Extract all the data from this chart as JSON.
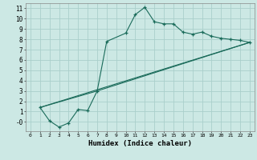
{
  "xlabel": "Humidex (Indice chaleur)",
  "bg_color": "#cce8e4",
  "grid_color": "#aacfcb",
  "line_color": "#1a6b5a",
  "xlim": [
    -0.5,
    23.5
  ],
  "ylim": [
    -0.9,
    11.5
  ],
  "xticks": [
    0,
    1,
    2,
    3,
    4,
    5,
    6,
    7,
    8,
    9,
    10,
    11,
    12,
    13,
    14,
    15,
    16,
    17,
    18,
    19,
    20,
    21,
    22,
    23
  ],
  "yticks": [
    0,
    1,
    2,
    3,
    4,
    5,
    6,
    7,
    8,
    9,
    10,
    11
  ],
  "ytick_labels": [
    "-0",
    "1",
    "2",
    "3",
    "4",
    "5",
    "6",
    "7",
    "8",
    "9",
    "10",
    "11"
  ],
  "line1_x": [
    1,
    2,
    3,
    4,
    5,
    6,
    7,
    8,
    10,
    11,
    12,
    13,
    14,
    15,
    16,
    17,
    18,
    19,
    20,
    21,
    22,
    23
  ],
  "line1_y": [
    1.4,
    0.1,
    -0.5,
    -0.1,
    1.2,
    1.1,
    3.0,
    7.8,
    8.6,
    10.4,
    11.1,
    9.7,
    9.5,
    9.5,
    8.7,
    8.5,
    8.7,
    8.3,
    8.1,
    8.0,
    7.9,
    7.7
  ],
  "line2_x": [
    1,
    23
  ],
  "line2_y": [
    1.4,
    7.7
  ],
  "line3_x": [
    1,
    7,
    23
  ],
  "line3_y": [
    1.4,
    3.0,
    7.7
  ]
}
